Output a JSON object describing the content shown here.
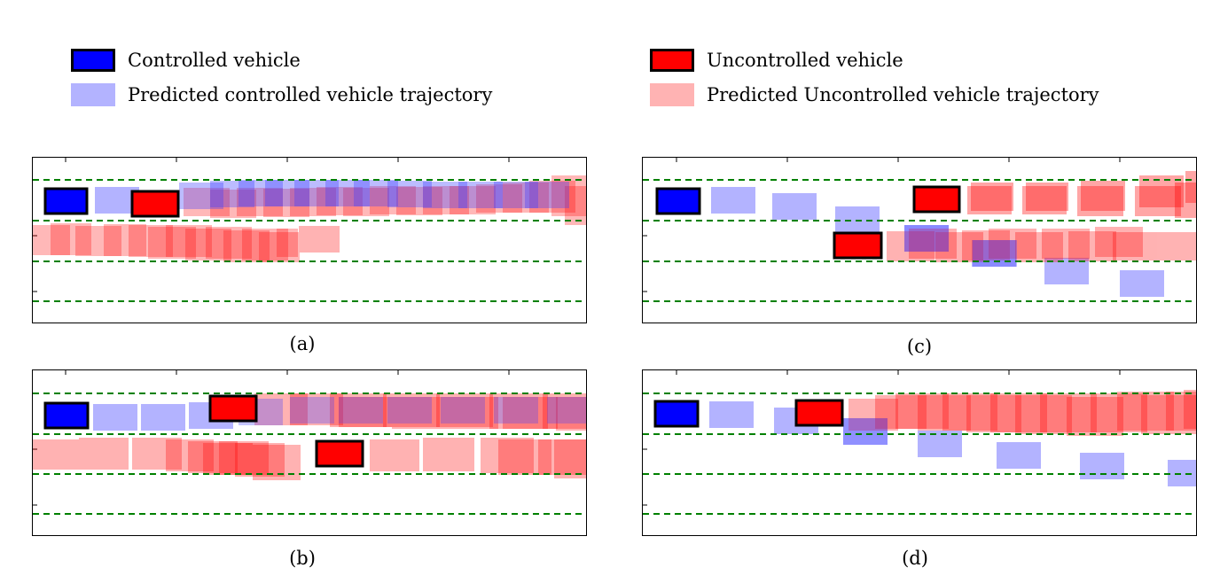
{
  "legend": {
    "controlled": {
      "label": "Controlled vehicle",
      "color": "#0000ff"
    },
    "predicted_controlled": {
      "label": "Predicted controlled vehicle trajectory",
      "color": "#b3b3ff"
    },
    "uncontrolled": {
      "label": "Uncontrolled vehicle",
      "color": "#ff0000"
    },
    "predicted_uncontrolled": {
      "label": "Predicted Uncontrolled vehicle trajectory",
      "color": "#ffb3b3"
    }
  },
  "lane_marking_color": "#008000",
  "captions": {
    "a": "(a)",
    "b": "(b)",
    "c": "(c)",
    "d": "(d)"
  }
}
